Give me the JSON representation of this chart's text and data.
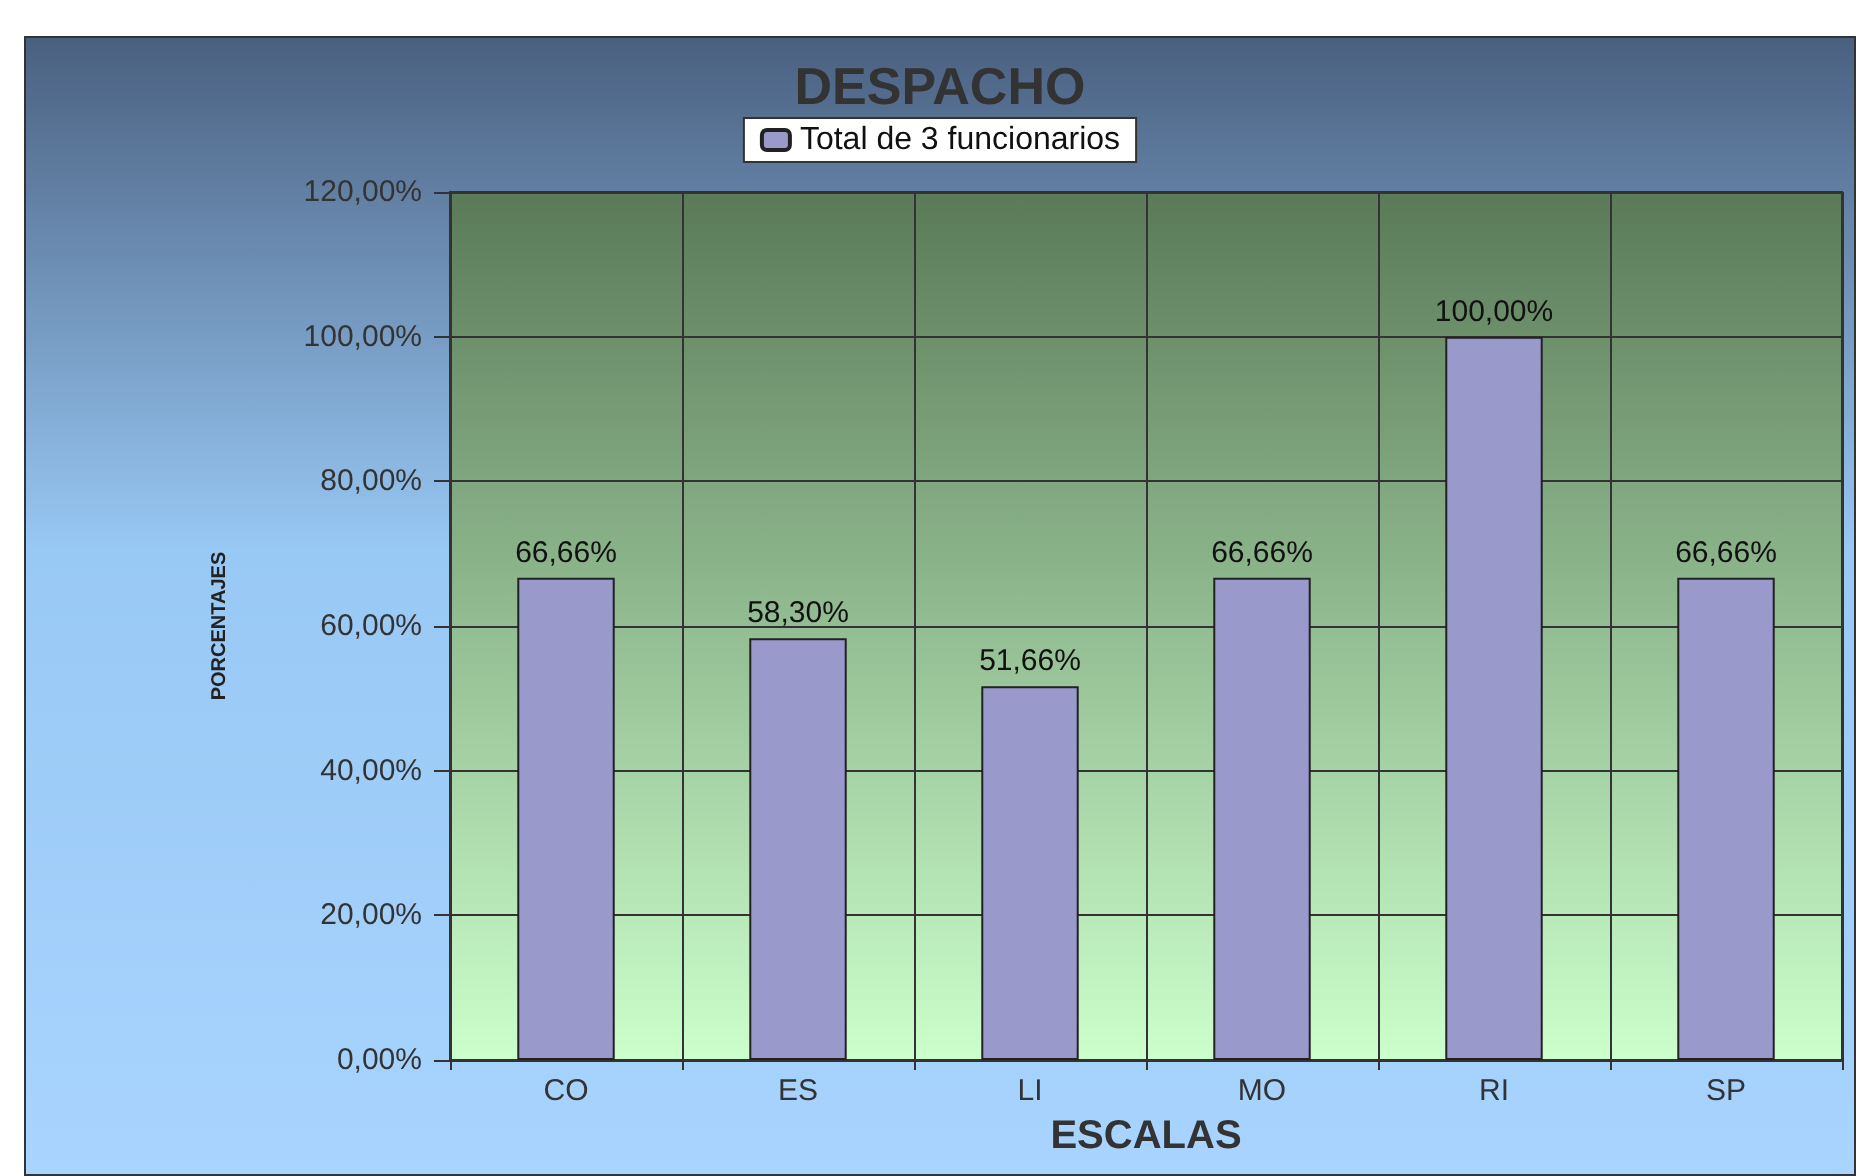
{
  "chart_data": {
    "type": "bar",
    "title": "DESPACHO",
    "xlabel": "ESCALAS",
    "ylabel": "PORCENTAJES",
    "categories": [
      "CO",
      "ES",
      "LI",
      "MO",
      "RI",
      "SP"
    ],
    "series": [
      {
        "name": "Total de 3 funcionarios",
        "color": "#9999cc",
        "values": [
          66.66,
          58.3,
          51.66,
          66.66,
          100,
          66.66
        ],
        "value_labels": [
          "66,66%",
          "58,30%",
          "51,66%",
          "66,66%",
          "100,00%",
          "66,66%"
        ]
      }
    ],
    "ylim": [
      0,
      120
    ],
    "yticks": [
      {
        "value": 0,
        "label": "0,00%"
      },
      {
        "value": 20,
        "label": "20,00%"
      },
      {
        "value": 40,
        "label": "40,00%"
      },
      {
        "value": 60,
        "label": "60,00%"
      },
      {
        "value": 80,
        "label": "80,00%"
      },
      {
        "value": 100,
        "label": "100,00%"
      },
      {
        "value": 120,
        "label": "120,00%"
      }
    ],
    "grid": true,
    "legend": "top"
  }
}
